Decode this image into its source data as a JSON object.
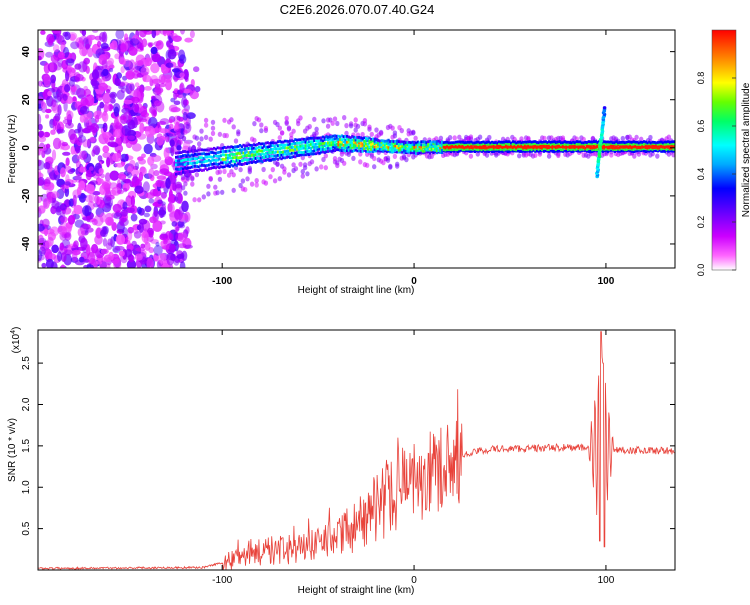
{
  "figure_title": "C2E6.2026.070.07.40.G24",
  "chart_data": [
    {
      "type": "heatmap",
      "title": "C2E6.2026.070.07.40.G24",
      "xlabel": "Height of straight line (km)",
      "ylabel": "Frequency (Hz)",
      "xlim": [
        -196,
        136
      ],
      "ylim": [
        -50,
        49
      ],
      "x_ticks": [
        -100,
        0,
        100
      ],
      "x_tick_labels": [
        "-100",
        "0",
        "100"
      ],
      "y_ticks": [
        -40,
        -20,
        0,
        20,
        40
      ],
      "y_tick_labels": [
        "-40",
        "-20",
        "0",
        "20",
        "40"
      ],
      "colorbar": {
        "label": "Normalized spectral amplitude",
        "range": [
          0,
          1
        ],
        "ticks": [
          0,
          0.2,
          0.4,
          0.6,
          0.8
        ],
        "tick_labels": [
          "0.0",
          "0.2",
          "0.4",
          "0.6",
          "0.8"
        ],
        "colormap": [
          "#ffffff",
          "#ff00ff",
          "#8800ff",
          "#0000ff",
          "#00ffff",
          "#00ff00",
          "#ffff00",
          "#ff8800",
          "#ff0000"
        ]
      },
      "features": {
        "noise_region_x": [
          -196,
          -118
        ],
        "track_center_freq": [
          {
            "x": -120,
            "f": -6
          },
          {
            "x": -100,
            "f": -4
          },
          {
            "x": -80,
            "f": -2
          },
          {
            "x": -60,
            "f": 0
          },
          {
            "x": -40,
            "f": 2
          },
          {
            "x": -20,
            "f": 1
          },
          {
            "x": 0,
            "f": 0
          },
          {
            "x": 20,
            "f": 0.5
          },
          {
            "x": 136,
            "f": 0.5
          }
        ],
        "disturbance_x": 97,
        "disturbance_freq_range": [
          -12,
          17
        ]
      }
    },
    {
      "type": "line",
      "xlabel": "Height of straight line (km)",
      "ylabel": "SNR (10 * v/v)",
      "y_multiplier_label": "(x10",
      "y_multiplier_exp": "4",
      "y_multiplier_close": ")",
      "xlim": [
        -196,
        136
      ],
      "ylim": [
        0,
        2.9
      ],
      "x_ticks": [
        -100,
        0,
        100
      ],
      "x_tick_labels": [
        "-100",
        "0",
        "100"
      ],
      "y_ticks": [
        0.5,
        1.0,
        1.5,
        2.0,
        2.5
      ],
      "y_tick_labels": [
        "0.5",
        "1.0",
        "1.5",
        "2.0",
        "2.5"
      ],
      "line_color": "#e8423a",
      "envelope_points": [
        {
          "x": -196,
          "y": 0.02
        },
        {
          "x": -110,
          "y": 0.03
        },
        {
          "x": -95,
          "y": 0.12
        },
        {
          "x": -85,
          "y": 0.22
        },
        {
          "x": -60,
          "y": 0.25
        },
        {
          "x": -45,
          "y": 0.35
        },
        {
          "x": -30,
          "y": 0.55
        },
        {
          "x": -20,
          "y": 0.75
        },
        {
          "x": -10,
          "y": 0.95
        },
        {
          "x": 0,
          "y": 1.05
        },
        {
          "x": 10,
          "y": 1.2
        },
        {
          "x": 20,
          "y": 1.33
        },
        {
          "x": 30,
          "y": 1.42
        },
        {
          "x": 40,
          "y": 1.46
        },
        {
          "x": 60,
          "y": 1.47
        },
        {
          "x": 80,
          "y": 1.48
        },
        {
          "x": 95,
          "y": 1.47
        },
        {
          "x": 110,
          "y": 1.45
        },
        {
          "x": 136,
          "y": 1.44
        }
      ],
      "spike": {
        "x": 97.5,
        "max": 2.88,
        "min": 0.28
      }
    }
  ]
}
